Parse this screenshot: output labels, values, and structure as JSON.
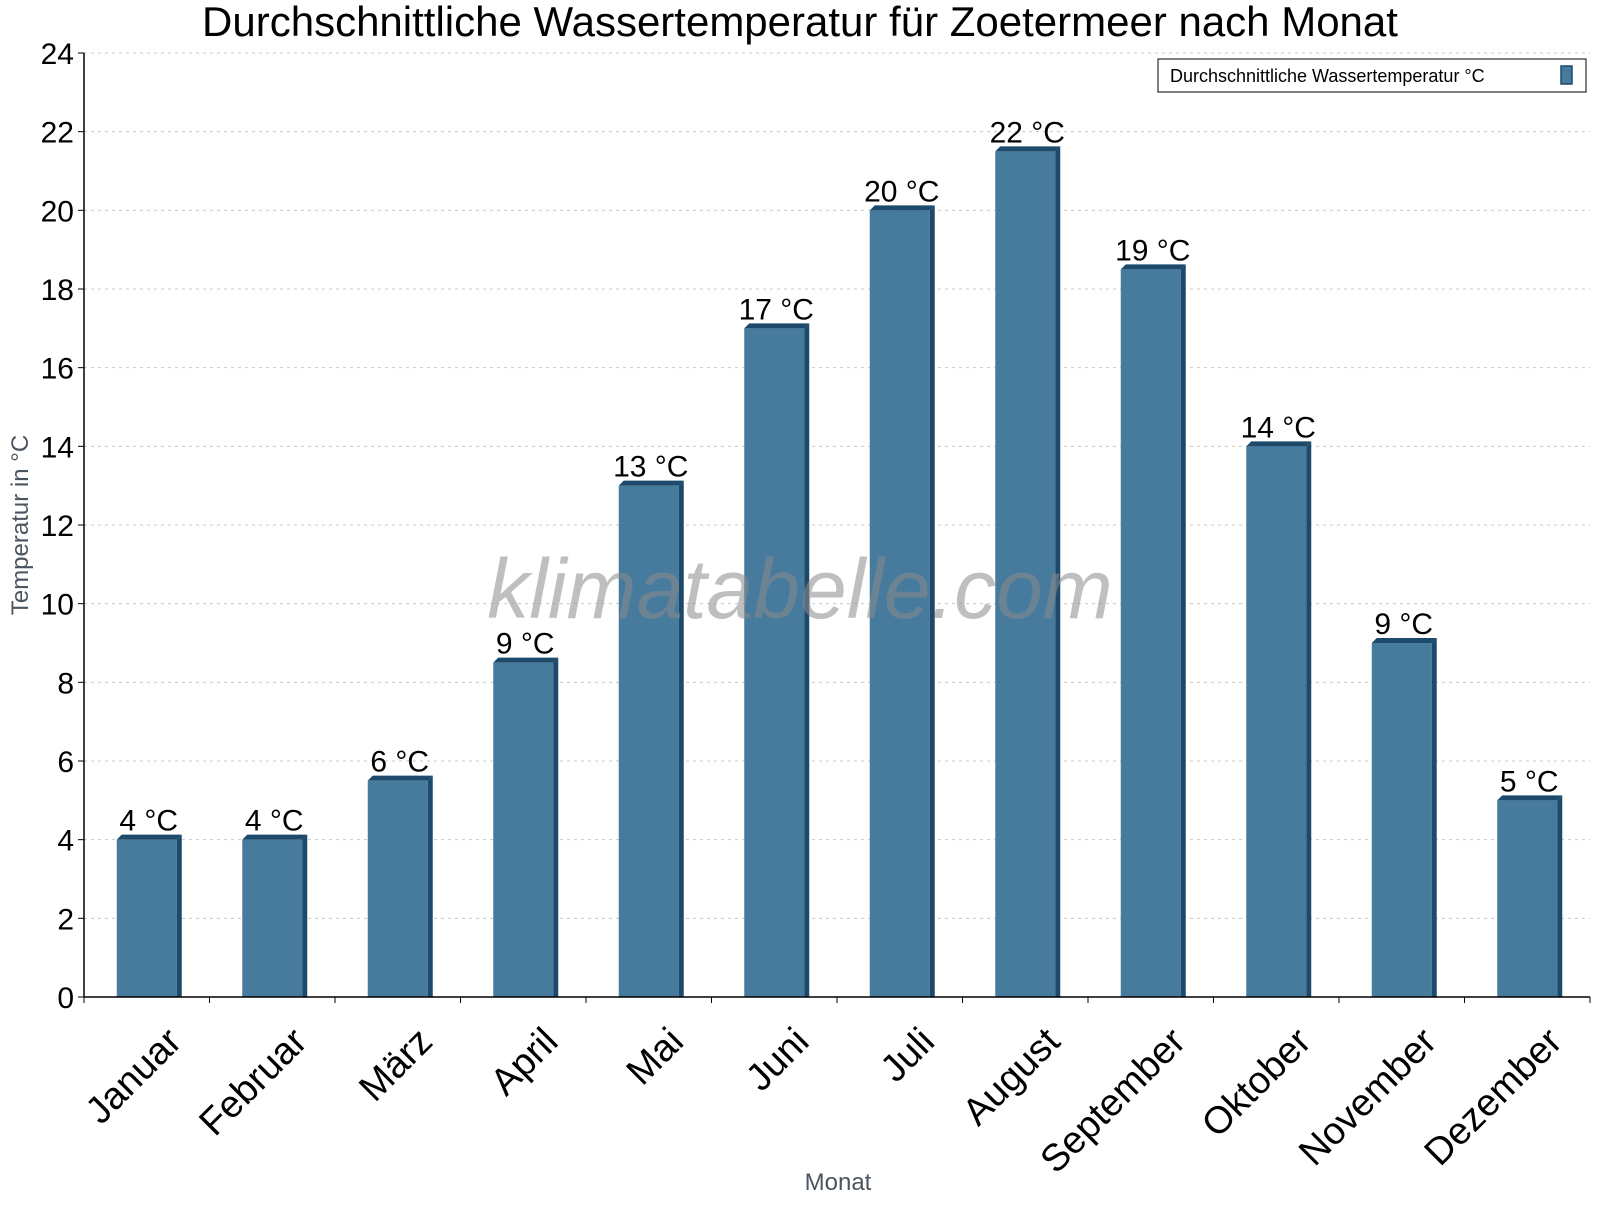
{
  "chart_data": {
    "type": "bar",
    "title": "Durchschnittliche Wassertemperatur für Zoetermeer nach Monat",
    "xlabel": "Monat",
    "ylabel": "Temperatur in °C",
    "ylim": [
      0,
      24
    ],
    "yticks": [
      0,
      2,
      4,
      6,
      8,
      10,
      12,
      14,
      16,
      18,
      20,
      22,
      24
    ],
    "grid": true,
    "legend_position": "top-right",
    "categories": [
      "Januar",
      "Februar",
      "März",
      "April",
      "Mai",
      "Juni",
      "Juli",
      "August",
      "September",
      "Oktober",
      "November",
      "Dezember"
    ],
    "series": [
      {
        "name": "Durchschnittliche Wassertemperatur °C",
        "values": [
          4.0,
          4.0,
          5.5,
          8.5,
          13.0,
          17.0,
          20.0,
          21.5,
          18.5,
          14.0,
          9.0,
          5.0
        ],
        "data_labels": [
          "4 °C",
          "4 °C",
          "6 °C",
          "9 °C",
          "13 °C",
          "17 °C",
          "20 °C",
          "22 °C",
          "19 °C",
          "14 °C",
          "9 °C",
          "5 °C"
        ]
      }
    ],
    "watermark": "klimatabelle.com",
    "colors": {
      "bar": "#467b9e",
      "bar_side": "#1d4a6b",
      "grid": "#c8c8c8",
      "axis": "#000000"
    }
  }
}
